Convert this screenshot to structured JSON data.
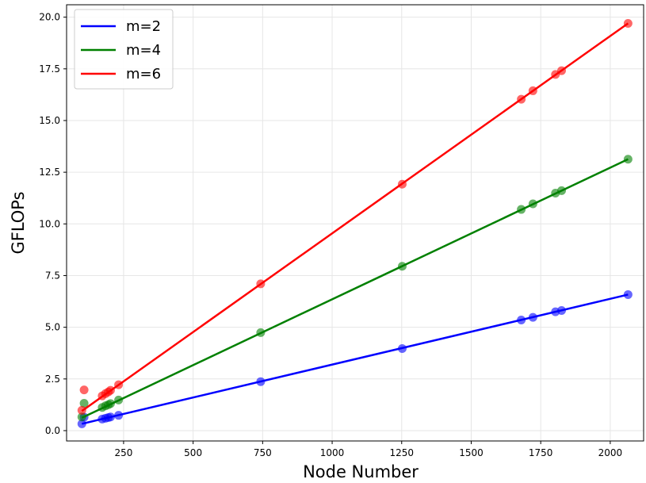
{
  "chart_data": {
    "type": "scatter",
    "title": "",
    "xlabel": "Node Number",
    "ylabel": "GFLOPs",
    "xlim": [
      45,
      2120
    ],
    "ylim": [
      -0.5,
      20.6
    ],
    "xticks": [
      250,
      500,
      750,
      1000,
      1250,
      1500,
      1750,
      2000
    ],
    "yticks": [
      0.0,
      2.5,
      5.0,
      7.5,
      10.0,
      12.5,
      15.0,
      17.5,
      20.0
    ],
    "xtick_labels": [
      "250",
      "500",
      "750",
      "1000",
      "1250",
      "1500",
      "1750",
      "2000"
    ],
    "ytick_labels": [
      "0.0",
      "2.5",
      "5.0",
      "7.5",
      "10.0",
      "12.5",
      "15.0",
      "17.5",
      "20.0"
    ],
    "grid": true,
    "legend_position": "top-left",
    "series": [
      {
        "name": "m=2",
        "color": "#0000ff",
        "line": [
          [
            100,
            0.33
          ],
          [
            2064,
            6.58
          ]
        ],
        "points": [
          [
            100,
            0.33
          ],
          [
            108,
            0.65
          ],
          [
            173,
            0.56
          ],
          [
            185,
            0.6
          ],
          [
            195,
            0.63
          ],
          [
            203,
            0.66
          ],
          [
            232,
            0.74
          ],
          [
            743,
            2.37
          ],
          [
            1252,
            3.97
          ],
          [
            1680,
            5.35
          ],
          [
            1722,
            5.48
          ],
          [
            1803,
            5.75
          ],
          [
            1825,
            5.81
          ],
          [
            2064,
            6.58
          ]
        ]
      },
      {
        "name": "m=4",
        "color": "#008000",
        "line": [
          [
            100,
            0.62
          ],
          [
            2064,
            13.13
          ]
        ],
        "points": [
          [
            100,
            0.66
          ],
          [
            108,
            1.32
          ],
          [
            173,
            1.12
          ],
          [
            185,
            1.2
          ],
          [
            195,
            1.25
          ],
          [
            203,
            1.31
          ],
          [
            232,
            1.48
          ],
          [
            743,
            4.74
          ],
          [
            1252,
            7.95
          ],
          [
            1680,
            10.7
          ],
          [
            1722,
            10.97
          ],
          [
            1803,
            11.49
          ],
          [
            1825,
            11.61
          ],
          [
            2064,
            13.13
          ]
        ]
      },
      {
        "name": "m=6",
        "color": "#ff0000",
        "line": [
          [
            100,
            0.95
          ],
          [
            2064,
            19.7
          ]
        ],
        "points": [
          [
            100,
            0.98
          ],
          [
            108,
            1.97
          ],
          [
            173,
            1.68
          ],
          [
            185,
            1.79
          ],
          [
            195,
            1.87
          ],
          [
            203,
            1.95
          ],
          [
            232,
            2.22
          ],
          [
            743,
            7.1
          ],
          [
            1252,
            11.92
          ],
          [
            1680,
            16.03
          ],
          [
            1722,
            16.44
          ],
          [
            1803,
            17.23
          ],
          [
            1825,
            17.41
          ],
          [
            2064,
            19.7
          ]
        ]
      }
    ]
  }
}
